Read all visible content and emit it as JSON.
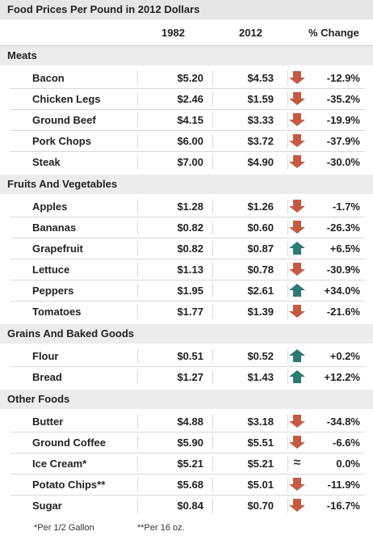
{
  "title": "Food Prices Per Pound in 2012 Dollars",
  "columns": {
    "y1982": "1982",
    "y2012": "2012",
    "change": "% Change"
  },
  "colors": {
    "down": "#c45a43",
    "up": "#2e7a74",
    "header_bg": "#e6e6e6",
    "section_bg": "#ececec"
  },
  "sections": [
    {
      "name": "Meats",
      "items": [
        {
          "name": "Bacon",
          "p1982": "$5.20",
          "p2012": "$4.53",
          "change": "-12.9%",
          "dir": "down"
        },
        {
          "name": "Chicken Legs",
          "p1982": "$2.46",
          "p2012": "$1.59",
          "change": "-35.2%",
          "dir": "down"
        },
        {
          "name": "Ground Beef",
          "p1982": "$4.15",
          "p2012": "$3.33",
          "change": "-19.9%",
          "dir": "down"
        },
        {
          "name": "Pork Chops",
          "p1982": "$6.00",
          "p2012": "$3.72",
          "change": "-37.9%",
          "dir": "down"
        },
        {
          "name": "Steak",
          "p1982": "$7.00",
          "p2012": "$4.90",
          "change": "-30.0%",
          "dir": "down"
        }
      ]
    },
    {
      "name": "Fruits And Vegetables",
      "items": [
        {
          "name": "Apples",
          "p1982": "$1.28",
          "p2012": "$1.26",
          "change": "-1.7%",
          "dir": "down"
        },
        {
          "name": "Bananas",
          "p1982": "$0.82",
          "p2012": "$0.60",
          "change": "-26.3%",
          "dir": "down"
        },
        {
          "name": "Grapefruit",
          "p1982": "$0.82",
          "p2012": "$0.87",
          "change": "+6.5%",
          "dir": "up"
        },
        {
          "name": "Lettuce",
          "p1982": "$1.13",
          "p2012": "$0.78",
          "change": "-30.9%",
          "dir": "down"
        },
        {
          "name": "Peppers",
          "p1982": "$1.95",
          "p2012": "$2.61",
          "change": "+34.0%",
          "dir": "up"
        },
        {
          "name": "Tomatoes",
          "p1982": "$1.77",
          "p2012": "$1.39",
          "change": "-21.6%",
          "dir": "down"
        }
      ]
    },
    {
      "name": "Grains And Baked Goods",
      "items": [
        {
          "name": "Flour",
          "p1982": "$0.51",
          "p2012": "$0.52",
          "change": "+0.2%",
          "dir": "up"
        },
        {
          "name": "Bread",
          "p1982": "$1.27",
          "p2012": "$1.43",
          "change": "+12.2%",
          "dir": "up"
        }
      ]
    },
    {
      "name": "Other Foods",
      "items": [
        {
          "name": "Butter",
          "p1982": "$4.88",
          "p2012": "$3.18",
          "change": "-34.8%",
          "dir": "down"
        },
        {
          "name": "Ground Coffee",
          "p1982": "$5.90",
          "p2012": "$5.51",
          "change": "-6.6%",
          "dir": "down"
        },
        {
          "name": "Ice Cream*",
          "p1982": "$5.21",
          "p2012": "$5.21",
          "change": "0.0%",
          "dir": "same",
          "symbol": "≈"
        },
        {
          "name": "Potato Chips**",
          "p1982": "$5.68",
          "p2012": "$5.01",
          "change": "-11.9%",
          "dir": "down"
        },
        {
          "name": "Sugar",
          "p1982": "$0.84",
          "p2012": "$0.70",
          "change": "-16.7%",
          "dir": "down"
        }
      ]
    }
  ],
  "footnotes": [
    "*Per 1/2 Gallon",
    "**Per 16 oz."
  ]
}
